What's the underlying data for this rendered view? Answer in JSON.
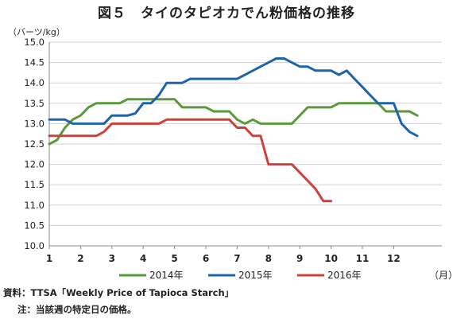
{
  "chart_data": {
    "type": "line",
    "title": "図５　タイのタピオカでん粉価格の推移",
    "ylabel": "（バーツ/kg）",
    "xunit": "（月）",
    "ylim": [
      10.0,
      15.0
    ],
    "yticks": [
      "10.0",
      "10.5",
      "11.0",
      "11.5",
      "12.0",
      "12.5",
      "13.0",
      "13.5",
      "14.0",
      "14.5",
      "15.0"
    ],
    "xlim": [
      1,
      12.75
    ],
    "xticks": [
      "1",
      "2",
      "3",
      "4",
      "5",
      "6",
      "7",
      "8",
      "9",
      "10",
      "11",
      "12"
    ],
    "grid": true,
    "legend_position": "bottom",
    "series": [
      {
        "name": "2014年",
        "color": "#5a9a3c",
        "points": [
          [
            1.0,
            12.5
          ],
          [
            1.25,
            12.6
          ],
          [
            1.5,
            12.9
          ],
          [
            1.75,
            13.1
          ],
          [
            2.0,
            13.2
          ],
          [
            2.25,
            13.4
          ],
          [
            2.5,
            13.5
          ],
          [
            3.0,
            13.5
          ],
          [
            3.25,
            13.5
          ],
          [
            3.5,
            13.6
          ],
          [
            4.0,
            13.6
          ],
          [
            4.5,
            13.6
          ],
          [
            5.0,
            13.6
          ],
          [
            5.25,
            13.4
          ],
          [
            5.5,
            13.4
          ],
          [
            6.0,
            13.4
          ],
          [
            6.25,
            13.3
          ],
          [
            6.5,
            13.3
          ],
          [
            6.75,
            13.3
          ],
          [
            7.0,
            13.1
          ],
          [
            7.25,
            13.0
          ],
          [
            7.5,
            13.1
          ],
          [
            7.75,
            13.0
          ],
          [
            8.0,
            13.0
          ],
          [
            8.5,
            13.0
          ],
          [
            8.75,
            13.0
          ],
          [
            9.0,
            13.2
          ],
          [
            9.25,
            13.4
          ],
          [
            9.5,
            13.4
          ],
          [
            10.0,
            13.4
          ],
          [
            10.25,
            13.5
          ],
          [
            10.5,
            13.5
          ],
          [
            11.0,
            13.5
          ],
          [
            11.5,
            13.5
          ],
          [
            11.75,
            13.3
          ],
          [
            12.0,
            13.3
          ],
          [
            12.25,
            13.3
          ],
          [
            12.5,
            13.3
          ],
          [
            12.75,
            13.2
          ]
        ]
      },
      {
        "name": "2015年",
        "color": "#1f63a9",
        "points": [
          [
            1.0,
            13.1
          ],
          [
            1.25,
            13.1
          ],
          [
            1.5,
            13.1
          ],
          [
            1.75,
            13.0
          ],
          [
            2.0,
            13.0
          ],
          [
            2.5,
            13.0
          ],
          [
            2.75,
            13.0
          ],
          [
            3.0,
            13.2
          ],
          [
            3.25,
            13.2
          ],
          [
            3.5,
            13.2
          ],
          [
            3.75,
            13.25
          ],
          [
            4.0,
            13.5
          ],
          [
            4.25,
            13.5
          ],
          [
            4.5,
            13.7
          ],
          [
            4.75,
            14.0
          ],
          [
            5.0,
            14.0
          ],
          [
            5.25,
            14.0
          ],
          [
            5.5,
            14.1
          ],
          [
            6.0,
            14.1
          ],
          [
            6.5,
            14.1
          ],
          [
            7.0,
            14.1
          ],
          [
            7.25,
            14.2
          ],
          [
            7.5,
            14.3
          ],
          [
            7.75,
            14.4
          ],
          [
            8.0,
            14.5
          ],
          [
            8.25,
            14.6
          ],
          [
            8.5,
            14.6
          ],
          [
            8.75,
            14.5
          ],
          [
            9.0,
            14.4
          ],
          [
            9.25,
            14.4
          ],
          [
            9.5,
            14.3
          ],
          [
            10.0,
            14.3
          ],
          [
            10.25,
            14.2
          ],
          [
            10.5,
            14.3
          ],
          [
            10.75,
            14.1
          ],
          [
            11.0,
            13.9
          ],
          [
            11.25,
            13.7
          ],
          [
            11.5,
            13.5
          ],
          [
            11.75,
            13.5
          ],
          [
            12.0,
            13.5
          ],
          [
            12.25,
            13.0
          ],
          [
            12.5,
            12.8
          ],
          [
            12.75,
            12.7
          ],
          [
            13.0,
            12.7
          ]
        ]
      },
      {
        "name": "2016年",
        "color": "#d0403a",
        "points": [
          [
            1.0,
            12.7
          ],
          [
            1.5,
            12.7
          ],
          [
            2.0,
            12.7
          ],
          [
            2.5,
            12.7
          ],
          [
            2.75,
            12.8
          ],
          [
            3.0,
            13.0
          ],
          [
            3.5,
            13.0
          ],
          [
            4.0,
            13.0
          ],
          [
            4.5,
            13.0
          ],
          [
            4.75,
            13.1
          ],
          [
            5.0,
            13.1
          ],
          [
            5.5,
            13.1
          ],
          [
            6.0,
            13.1
          ],
          [
            6.5,
            13.1
          ],
          [
            6.75,
            13.1
          ],
          [
            7.0,
            12.9
          ],
          [
            7.25,
            12.9
          ],
          [
            7.5,
            12.7
          ],
          [
            7.75,
            12.7
          ],
          [
            8.0,
            12.0
          ],
          [
            8.5,
            12.0
          ],
          [
            8.75,
            12.0
          ],
          [
            9.0,
            11.8
          ],
          [
            9.25,
            11.6
          ],
          [
            9.5,
            11.4
          ],
          [
            9.75,
            11.1
          ],
          [
            10.0,
            11.1
          ]
        ]
      }
    ]
  },
  "footnotes": {
    "source": "資料：TTSA「Weekly Price of Tapioca Starch」",
    "note": "注：当該週の特定日の価格。"
  }
}
